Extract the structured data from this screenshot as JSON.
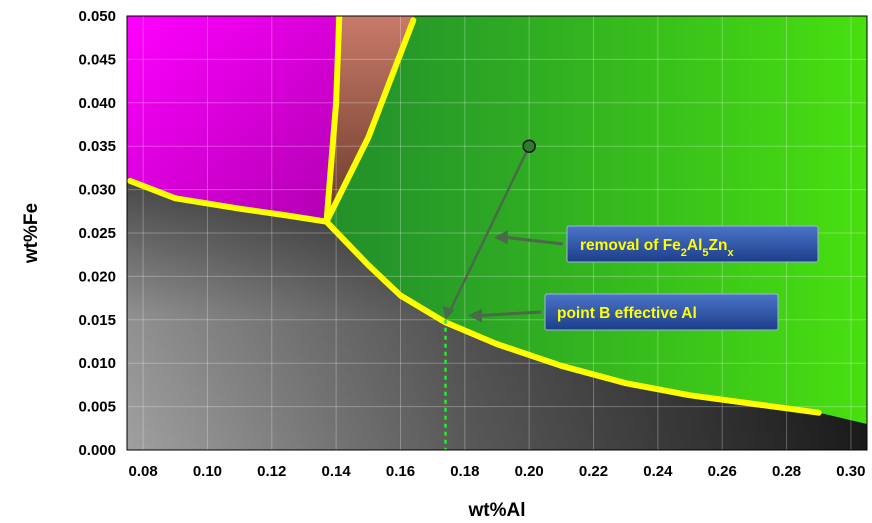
{
  "chart_data": {
    "type": "line",
    "title": "",
    "xlabel": "wt%Al",
    "ylabel": "wt%Fe",
    "xlim": [
      0.075,
      0.305
    ],
    "ylim": [
      0.0,
      0.05
    ],
    "xticks": [
      "0.08",
      "0.10",
      "0.12",
      "0.14",
      "0.16",
      "0.18",
      "0.20",
      "0.22",
      "0.24",
      "0.26",
      "0.28",
      "0.30"
    ],
    "yticks": [
      "0.000",
      "0.005",
      "0.010",
      "0.015",
      "0.020",
      "0.025",
      "0.030",
      "0.035",
      "0.040",
      "0.045",
      "0.050"
    ],
    "grid": true,
    "regions": [
      {
        "fill": "#e000e0"
      },
      {
        "fill": "#b06a5c"
      },
      {
        "fill": "#2ea82e"
      },
      {
        "fill": "#3a3a3a"
      }
    ],
    "phase_boundaries": [
      {
        "color": "#ffff00",
        "x": [
          0.076,
          0.09,
          0.11,
          0.125,
          0.137
        ],
        "y": [
          0.031,
          0.029,
          0.0278,
          0.027,
          0.0263
        ]
      },
      {
        "color": "#ffff00",
        "x": [
          0.137,
          0.15,
          0.16,
          0.174,
          0.19,
          0.21,
          0.23,
          0.25,
          0.27,
          0.29
        ],
        "y": [
          0.0263,
          0.0213,
          0.0178,
          0.0147,
          0.0122,
          0.0097,
          0.0077,
          0.0063,
          0.0053,
          0.0043
        ]
      },
      {
        "color": "#ffff00",
        "x": [
          0.137,
          0.14,
          0.141
        ],
        "y": [
          0.0263,
          0.04,
          0.05
        ]
      },
      {
        "color": "#ffff00",
        "x": [
          0.137,
          0.15,
          0.164
        ],
        "y": [
          0.0263,
          0.036,
          0.0495
        ]
      }
    ],
    "lower_edge": {
      "x": [
        0.076,
        0.29,
        0.305
      ],
      "y": [
        0.031,
        0.0043,
        0.003
      ]
    },
    "point": {
      "x": 0.2,
      "y": 0.035
    },
    "path_to_effective_al": {
      "x": [
        0.2,
        0.174
      ],
      "y": [
        0.035,
        0.015
      ]
    },
    "dotted_line": {
      "x": [
        0.174,
        0.174
      ],
      "y": [
        0.015,
        0.0
      ]
    },
    "annotations": [
      {
        "text": "removal of ",
        "formula": [
          "Fe",
          "2",
          "Al",
          "5",
          "Zn",
          "x"
        ],
        "arrow_to": [
          0.189,
          0.0245
        ]
      },
      {
        "text": "point B effective Al",
        "arrow_to": [
          0.181,
          0.0155
        ]
      }
    ]
  }
}
